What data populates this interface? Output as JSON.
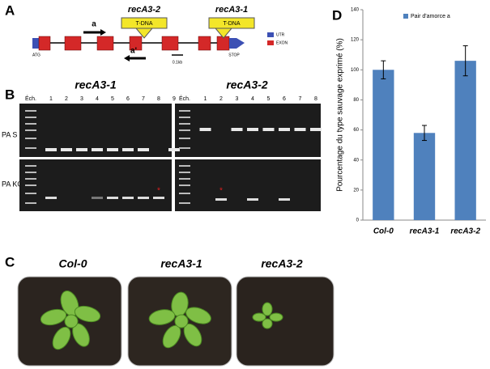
{
  "panels": {
    "a": "A",
    "b": "B",
    "c": "C",
    "d": "D"
  },
  "gene": {
    "constructs": [
      "recA3-2",
      "recA3-1"
    ],
    "insert": [
      "T-DNA",
      "T-DNA"
    ],
    "primers": [
      "a",
      "a'"
    ],
    "start": "ATG",
    "stop": "STOP",
    "scale": "0.1kb",
    "legend": [
      "UTR",
      "EXON"
    ]
  },
  "gels": [
    {
      "title": "recA3-1",
      "lanes": [
        "Éch.",
        "1",
        "2",
        "3",
        "4",
        "5",
        "6",
        "7",
        "8",
        "9"
      ]
    },
    {
      "title": "recA3-2",
      "lanes": [
        "Éch.",
        "1",
        "2",
        "3",
        "4",
        "5",
        "6",
        "7",
        "8"
      ]
    }
  ],
  "gel_rows": [
    "PA S",
    "PA KO"
  ],
  "plants": [
    "Col-0",
    "recA3-1",
    "recA3-2"
  ],
  "chart_data": {
    "type": "bar",
    "y_label": "Pourcentage du type sauvage exprimé (%)",
    "categories": [
      "Col-0",
      "recA3-1",
      "recA3-2"
    ],
    "series": [
      {
        "name": "Pair d'amorce a",
        "color": "#4f81bd",
        "values": [
          100,
          58,
          106
        ],
        "errors": [
          6,
          5,
          10
        ]
      }
    ],
    "ylim": [
      0,
      140
    ],
    "yticks": [
      0,
      20,
      40,
      60,
      80,
      100,
      120,
      140
    ],
    "legend": "top"
  }
}
